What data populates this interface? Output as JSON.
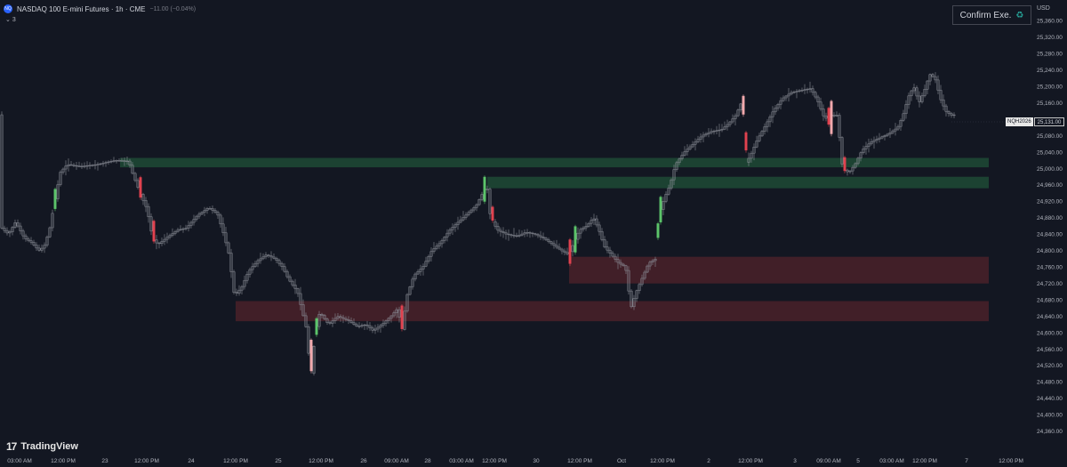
{
  "header": {
    "symbol_icon": "NQ",
    "title": "NASDAQ 100 E-mini Futures · 1h · CME",
    "change": "−11.00 (−0.04%)",
    "indicator_count": "3"
  },
  "confirm_button": {
    "label": "Confirm Exe.",
    "icon": "recycle-icon"
  },
  "currency": "USD",
  "symbol_tag": "NQH2026",
  "last_price": "25,131.00",
  "logo": {
    "mark": "17",
    "name": "TradingView"
  },
  "colors": {
    "background": "#131722",
    "candle_neutral": "#8a8d96",
    "bull_highlight": "#5cc46a",
    "bear_highlight": "#e0424f",
    "bear_light": "#f2a9ad",
    "green_zone": "#1f4a35",
    "red_zone": "#4a2129"
  },
  "chart_data": {
    "type": "candlestick",
    "timeframe": "1h",
    "y_ticks": [
      "25,360.00",
      "25,320.00",
      "25,280.00",
      "25,240.00",
      "25,200.00",
      "25,160.00",
      "25,120.00",
      "25,080.00",
      "25,040.00",
      "25,000.00",
      "24,960.00",
      "24,920.00",
      "24,880.00",
      "24,840.00",
      "24,800.00",
      "24,760.00",
      "24,720.00",
      "24,680.00",
      "24,640.00",
      "24,600.00",
      "24,560.00",
      "24,520.00",
      "24,480.00",
      "24,440.00",
      "24,400.00",
      "24,360.00"
    ],
    "ylim": [
      24340,
      25376
    ],
    "x_ticks": [
      "03:00 AM",
      "12:00 PM",
      "23",
      "12:00 PM",
      "24",
      "12:00 PM",
      "25",
      "12:00 PM",
      "26",
      "09:00 AM",
      "28",
      "03:00 AM",
      "12:00 PM",
      "30",
      "12:00 PM",
      "Oct",
      "12:00 PM",
      "2",
      "12:00 PM",
      "3",
      "09:00 AM",
      "5",
      "03:00 AM",
      "12:00 PM",
      "7",
      "12:00 PM"
    ],
    "last_price": 25131,
    "zones": [
      {
        "kind": "demand",
        "low": 25003,
        "high": 25026,
        "start": "23 03:00 AM",
        "end": "7"
      },
      {
        "kind": "demand",
        "low": 24952,
        "high": 24980,
        "start": "28 03:00 AM",
        "end": "7"
      },
      {
        "kind": "supply",
        "low": 24720,
        "high": 24785,
        "start": "30 12:00 PM",
        "end": "7"
      },
      {
        "kind": "supply",
        "low": 24628,
        "high": 24677,
        "start": "25",
        "end": "7"
      }
    ],
    "path": [
      [
        0,
        24860
      ],
      [
        10,
        24840
      ],
      [
        18,
        24870
      ],
      [
        28,
        24830
      ],
      [
        36,
        24820
      ],
      [
        44,
        24800
      ],
      [
        50,
        24810
      ],
      [
        56,
        24850
      ],
      [
        62,
        24920
      ],
      [
        68,
        24990
      ],
      [
        76,
        25010
      ],
      [
        90,
        25005
      ],
      [
        110,
        25010
      ],
      [
        130,
        25020
      ],
      [
        145,
        25018
      ],
      [
        150,
        24985
      ],
      [
        158,
        24940
      ],
      [
        166,
        24900
      ],
      [
        172,
        24830
      ],
      [
        178,
        24815
      ],
      [
        190,
        24835
      ],
      [
        200,
        24850
      ],
      [
        210,
        24855
      ],
      [
        222,
        24885
      ],
      [
        235,
        24905
      ],
      [
        245,
        24890
      ],
      [
        252,
        24840
      ],
      [
        258,
        24790
      ],
      [
        264,
        24690
      ],
      [
        272,
        24710
      ],
      [
        280,
        24750
      ],
      [
        290,
        24775
      ],
      [
        300,
        24790
      ],
      [
        310,
        24780
      ],
      [
        318,
        24760
      ],
      [
        325,
        24730
      ],
      [
        335,
        24700
      ],
      [
        345,
        24610
      ],
      [
        350,
        24490
      ],
      [
        355,
        24600
      ],
      [
        360,
        24650
      ],
      [
        370,
        24620
      ],
      [
        380,
        24640
      ],
      [
        392,
        24630
      ],
      [
        402,
        24615
      ],
      [
        412,
        24620
      ],
      [
        420,
        24605
      ],
      [
        430,
        24620
      ],
      [
        440,
        24640
      ],
      [
        448,
        24660
      ],
      [
        452,
        24600
      ],
      [
        458,
        24690
      ],
      [
        466,
        24740
      ],
      [
        476,
        24760
      ],
      [
        486,
        24800
      ],
      [
        496,
        24820
      ],
      [
        506,
        24850
      ],
      [
        516,
        24870
      ],
      [
        526,
        24890
      ],
      [
        536,
        24910
      ],
      [
        542,
        24935
      ],
      [
        548,
        24960
      ],
      [
        552,
        24880
      ],
      [
        560,
        24850
      ],
      [
        570,
        24840
      ],
      [
        582,
        24835
      ],
      [
        592,
        24845
      ],
      [
        602,
        24840
      ],
      [
        612,
        24830
      ],
      [
        622,
        24815
      ],
      [
        632,
        24800
      ],
      [
        640,
        24790
      ],
      [
        646,
        24820
      ],
      [
        652,
        24850
      ],
      [
        660,
        24860
      ],
      [
        668,
        24880
      ],
      [
        674,
        24850
      ],
      [
        680,
        24810
      ],
      [
        688,
        24790
      ],
      [
        696,
        24770
      ],
      [
        704,
        24760
      ],
      [
        710,
        24660
      ],
      [
        716,
        24700
      ],
      [
        724,
        24740
      ],
      [
        730,
        24770
      ],
      [
        738,
        24780
      ],
      [
        742,
        24890
      ],
      [
        748,
        24930
      ],
      [
        754,
        24960
      ],
      [
        760,
        25010
      ],
      [
        770,
        25040
      ],
      [
        780,
        25060
      ],
      [
        790,
        25080
      ],
      [
        800,
        25090
      ],
      [
        812,
        25095
      ],
      [
        820,
        25110
      ],
      [
        828,
        25130
      ],
      [
        834,
        25160
      ],
      [
        838,
        25010
      ],
      [
        844,
        25030
      ],
      [
        852,
        25070
      ],
      [
        860,
        25100
      ],
      [
        870,
        25140
      ],
      [
        880,
        25170
      ],
      [
        890,
        25185
      ],
      [
        900,
        25190
      ],
      [
        912,
        25195
      ],
      [
        920,
        25165
      ],
      [
        928,
        25120
      ],
      [
        934,
        25130
      ],
      [
        942,
        25130
      ],
      [
        948,
        25000
      ],
      [
        955,
        24990
      ],
      [
        962,
        25010
      ],
      [
        970,
        25045
      ],
      [
        980,
        25065
      ],
      [
        990,
        25075
      ],
      [
        1000,
        25085
      ],
      [
        1010,
        25100
      ],
      [
        1016,
        25130
      ],
      [
        1022,
        25175
      ],
      [
        1028,
        25200
      ],
      [
        1034,
        25160
      ],
      [
        1040,
        25190
      ],
      [
        1046,
        25230
      ],
      [
        1052,
        25220
      ],
      [
        1058,
        25170
      ],
      [
        1064,
        25140
      ],
      [
        1070,
        25130
      ],
      [
        1074,
        25131
      ]
    ]
  }
}
